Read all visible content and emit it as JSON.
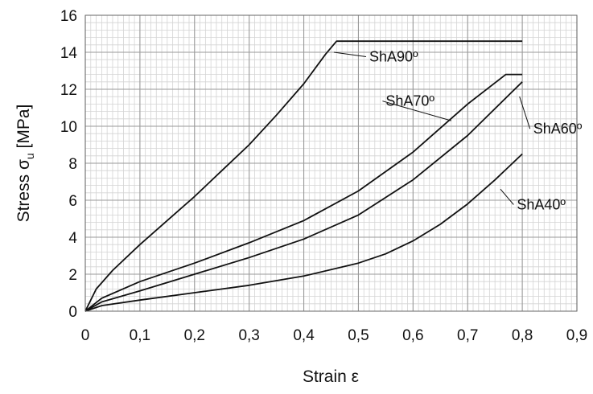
{
  "chart_data": {
    "type": "line",
    "xlabel": "Strain ε",
    "ylabel_main": "Stress σ",
    "ylabel_sub": "u",
    "ylabel_unit": "[MPa]",
    "xlim": [
      0,
      0.9
    ],
    "ylim": [
      0,
      16
    ],
    "x_major_ticks": [
      0,
      0.1,
      0.2,
      0.3,
      0.4,
      0.5,
      0.6,
      0.7,
      0.8,
      0.9
    ],
    "x_tick_labels": [
      "0",
      "0,1",
      "0,2",
      "0,3",
      "0,4",
      "0,5",
      "0,6",
      "0,7",
      "0,8",
      "0,9"
    ],
    "y_major_ticks": [
      0,
      2,
      4,
      6,
      8,
      10,
      12,
      14,
      16
    ],
    "y_tick_labels": [
      "0",
      "2",
      "4",
      "6",
      "8",
      "10",
      "12",
      "14",
      "16"
    ],
    "x_minor_step": 0.01,
    "y_minor_step": 0.4,
    "grid": true,
    "series": [
      {
        "name": "ShA90º",
        "x": [
          0,
          0.02,
          0.05,
          0.1,
          0.15,
          0.2,
          0.25,
          0.3,
          0.35,
          0.4,
          0.44,
          0.46,
          0.5,
          0.6,
          0.7,
          0.8
        ],
        "y": [
          0,
          1.2,
          2.2,
          3.6,
          4.9,
          6.2,
          7.6,
          9.0,
          10.6,
          12.3,
          13.9,
          14.6,
          14.6,
          14.6,
          14.6,
          14.6
        ],
        "label_anchor": [
          0.455,
          14.0
        ],
        "label_text_at": [
          0.52,
          13.5
        ]
      },
      {
        "name": "ShA70º",
        "x": [
          0,
          0.03,
          0.1,
          0.2,
          0.3,
          0.4,
          0.5,
          0.6,
          0.7,
          0.77,
          0.8
        ],
        "y": [
          0,
          0.7,
          1.6,
          2.6,
          3.7,
          4.9,
          6.5,
          8.6,
          11.2,
          12.8,
          12.8
        ],
        "label_anchor": [
          0.67,
          10.3
        ],
        "label_text_at": [
          0.55,
          11.1
        ]
      },
      {
        "name": "ShA60º",
        "x": [
          0,
          0.03,
          0.1,
          0.2,
          0.3,
          0.4,
          0.5,
          0.6,
          0.7,
          0.8
        ],
        "y": [
          0,
          0.5,
          1.1,
          2.0,
          2.9,
          3.9,
          5.2,
          7.1,
          9.5,
          12.4
        ],
        "label_anchor": [
          0.795,
          11.6
        ],
        "label_text_at": [
          0.82,
          9.6
        ]
      },
      {
        "name": "ShA40º",
        "x": [
          0,
          0.03,
          0.1,
          0.2,
          0.3,
          0.4,
          0.5,
          0.55,
          0.6,
          0.65,
          0.7,
          0.75,
          0.8
        ],
        "y": [
          0,
          0.3,
          0.6,
          1.0,
          1.4,
          1.9,
          2.6,
          3.1,
          3.8,
          4.7,
          5.8,
          7.1,
          8.5
        ],
        "label_anchor": [
          0.76,
          6.6
        ],
        "label_text_at": [
          0.79,
          5.5
        ]
      }
    ]
  }
}
